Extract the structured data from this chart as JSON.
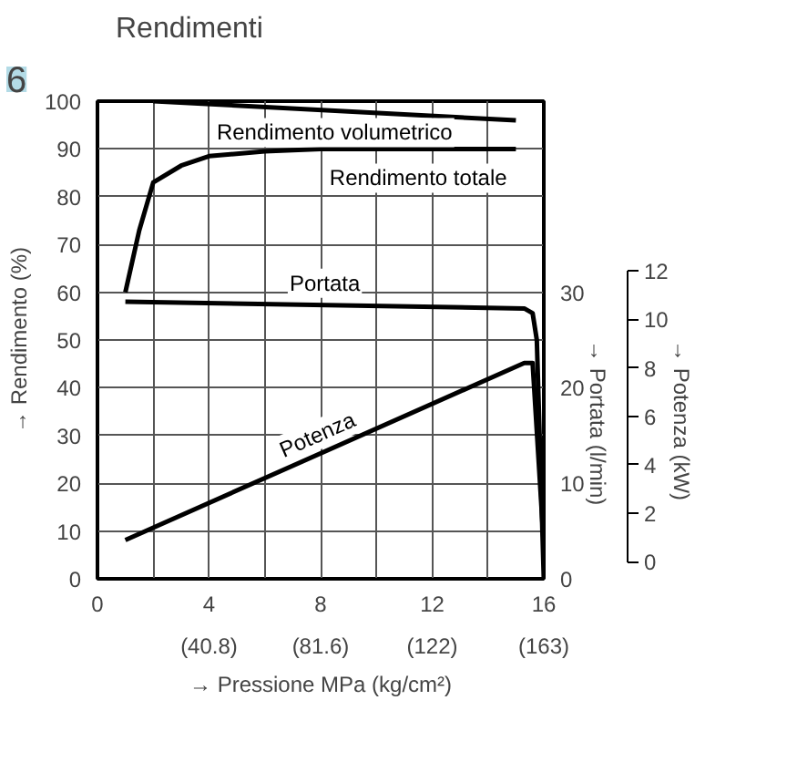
{
  "chart_data": {
    "type": "line",
    "title": "Rendimenti",
    "xlabel": "→ Pressione MPa (kg/cm²)",
    "ylabel": "→ Rendimento (%)",
    "y2label": "→ Portata (l/min)",
    "y3label": "→ Potenza (kW)",
    "annotations": [
      "6"
    ],
    "xlim": [
      0,
      16
    ],
    "xticks": [
      0,
      {
        "value": 2,
        "label": null
      },
      4,
      {
        "value": 6,
        "label": null
      },
      8,
      {
        "value": 10,
        "label": null
      },
      12,
      {
        "value": 14,
        "label": null
      },
      16
    ],
    "x2lim": [
      0,
      163.2
    ],
    "x2ticks": [
      {
        "value": 40.8,
        "label": "(40.8)"
      },
      {
        "value": 81.6,
        "label": "(81.6)"
      },
      {
        "value": 122.4,
        "label": "(122)"
      },
      {
        "value": 163.2,
        "label": "(163)"
      }
    ],
    "ylim": [
      0,
      100
    ],
    "yticks": [
      0,
      10,
      20,
      30,
      40,
      50,
      60,
      70,
      80,
      90,
      100
    ],
    "y2lim": [
      0,
      50
    ],
    "y2ticks": [
      0,
      10,
      20,
      30
    ],
    "y3lim": [
      -0.7,
      19
    ],
    "y3ticks": [
      0,
      2,
      4,
      6,
      8,
      10,
      12
    ],
    "grid": true,
    "marker": "none",
    "line_style": "solid",
    "series": [
      {
        "name": "Rendimento volumetrico",
        "color": "#000000",
        "x": [
          2,
          15
        ],
        "values": [
          100,
          96
        ]
      },
      {
        "name": "Rendimento totale",
        "color": "#000000",
        "x": [
          1,
          1.5,
          2,
          3,
          4,
          6,
          8,
          15
        ],
        "values": [
          60,
          73,
          83,
          86.5,
          88.5,
          89.5,
          90,
          90
        ]
      },
      {
        "name": "Portata",
        "color": "#000000",
        "axis": "y2",
        "x": [
          1,
          15.3,
          15.6,
          15.75,
          15.85,
          16
        ],
        "values": [
          29,
          28.3,
          27.8,
          25,
          15,
          0
        ]
      },
      {
        "name": "Potenza",
        "color": "#000000",
        "axis": "y3",
        "x": [
          1,
          15.3,
          15.6,
          16
        ],
        "values": [
          0.9,
          8.2,
          8.2,
          0.7
        ]
      }
    ]
  }
}
